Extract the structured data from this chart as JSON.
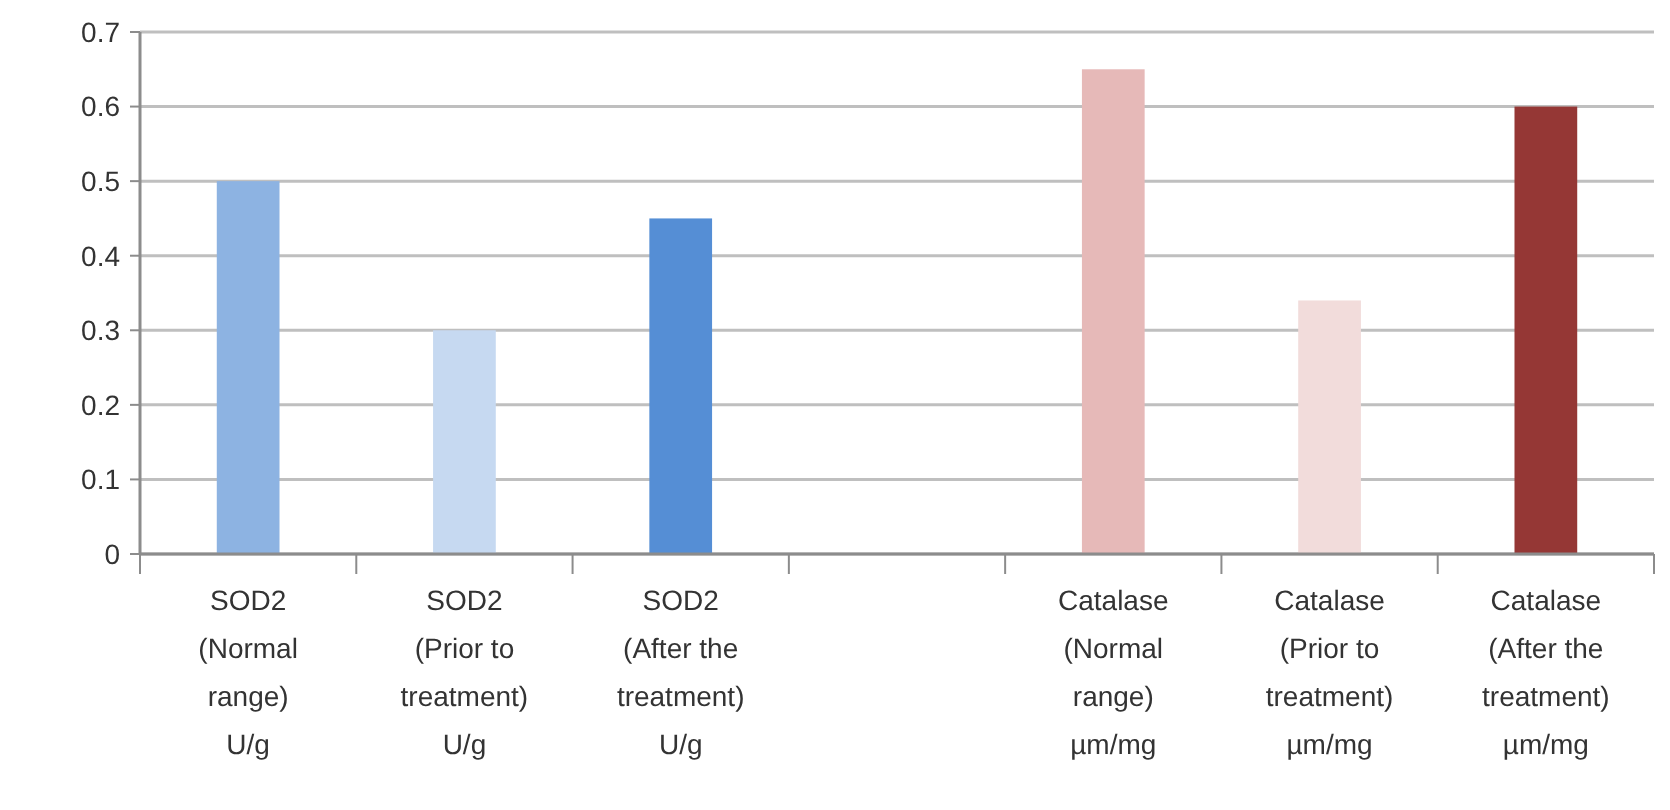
{
  "chart_data": {
    "type": "bar",
    "categories": [
      "SOD2 (Normal range) U/g",
      "SOD2 (Prior to treatment) U/g",
      "SOD2 (After the treatment) U/g",
      null,
      "Catalase (Normal range) µm/mg",
      "Catalase (Prior to treatment) µm/mg",
      "Catalase (After the treatment) µm/mg"
    ],
    "values": [
      0.5,
      0.3,
      0.45,
      null,
      0.65,
      0.34,
      0.6
    ],
    "colors": [
      "#8db3e2",
      "#c6d9f1",
      "#558ed5",
      null,
      "#e6b9b8",
      "#f2dcdb",
      "#953735"
    ],
    "ylim": [
      0,
      0.7
    ],
    "yticks": [
      0,
      0.1,
      0.2,
      0.3,
      0.4,
      0.5,
      0.6,
      0.7
    ],
    "grid": "y"
  }
}
